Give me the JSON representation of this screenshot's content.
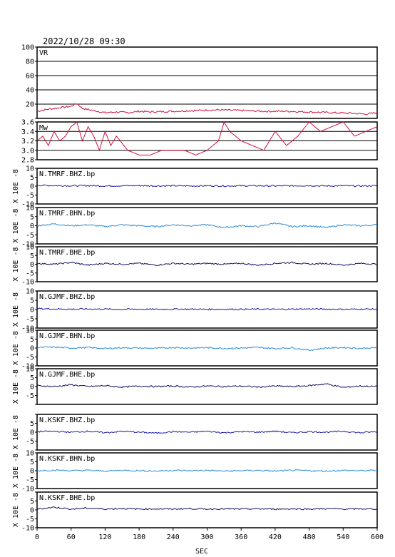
{
  "header": {
    "datetime": "2022/10/28 09:30"
  },
  "xaxis": {
    "label": "SEC",
    "min": 0,
    "max": 600,
    "ticks": [
      0,
      60,
      120,
      180,
      240,
      300,
      360,
      420,
      480,
      540,
      600
    ]
  },
  "colors": {
    "vr": "#d0103a",
    "mw": "#d0103a",
    "grid": "#000000",
    "bhz": "#1a1aa0",
    "bhn": "#2a8ad8",
    "bhe": "#101060"
  },
  "chart_data": [
    {
      "type": "line",
      "label": "VR",
      "ylim": [
        0,
        100
      ],
      "yticks": [
        0,
        20,
        40,
        60,
        80,
        100
      ],
      "ytick_labels": [
        "",
        "20",
        "40",
        "60",
        "80",
        "100"
      ],
      "grid": true,
      "x": [
        0,
        20,
        40,
        60,
        70,
        80,
        100,
        120,
        140,
        160,
        180,
        200,
        240,
        280,
        320,
        360,
        400,
        440,
        480,
        520,
        560,
        580,
        600
      ],
      "values": [
        10,
        13,
        15,
        17,
        21,
        14,
        11,
        8,
        9,
        8,
        10,
        9,
        10,
        11,
        12,
        11,
        10,
        10,
        9,
        8,
        7,
        6,
        8
      ]
    },
    {
      "type": "line",
      "label": "Mw",
      "ylim": [
        2.8,
        3.6
      ],
      "yticks": [
        2.8,
        3.0,
        3.2,
        3.4,
        3.6
      ],
      "ytick_labels": [
        "2.8",
        "3.0",
        "3.2",
        "3.4",
        "3.6"
      ],
      "grid": true,
      "x": [
        0,
        10,
        20,
        30,
        40,
        50,
        60,
        70,
        80,
        90,
        100,
        110,
        120,
        130,
        140,
        160,
        180,
        200,
        220,
        240,
        260,
        280,
        300,
        320,
        330,
        340,
        360,
        380,
        400,
        420,
        440,
        460,
        480,
        500,
        520,
        540,
        560,
        580,
        600
      ],
      "values": [
        3.2,
        3.3,
        3.1,
        3.4,
        3.2,
        3.3,
        3.5,
        3.6,
        3.2,
        3.5,
        3.3,
        3.0,
        3.4,
        3.1,
        3.3,
        3.0,
        2.9,
        2.9,
        3.0,
        3.0,
        3.0,
        2.9,
        3.0,
        3.2,
        3.6,
        3.4,
        3.2,
        3.1,
        3.0,
        3.4,
        3.1,
        3.3,
        3.6,
        3.4,
        3.5,
        3.6,
        3.3,
        3.4,
        3.5
      ]
    },
    {
      "type": "line",
      "label": "N.TMRF.BHZ.bp",
      "color_key": "bhz",
      "ylim": [
        -10,
        10
      ],
      "yticks": [
        -10,
        -5,
        0,
        5,
        10
      ],
      "ytick_labels": [
        "-10",
        "-5",
        "0",
        "5",
        "10"
      ],
      "ylabel": "X 10E -8",
      "x": [
        0,
        30,
        60,
        90,
        120,
        150,
        180,
        210,
        240,
        270,
        300,
        330,
        360,
        390,
        420,
        450,
        480,
        510,
        540,
        570,
        600
      ],
      "values": [
        0.5,
        0.3,
        0.2,
        0.3,
        0.1,
        0.2,
        0.3,
        0.1,
        0.2,
        0.1,
        0.2,
        0.1,
        0.2,
        0.2,
        0.1,
        0.2,
        0.3,
        0.1,
        0.2,
        0.1,
        0.2
      ]
    },
    {
      "type": "line",
      "label": "N.TMRF.BHN.bp",
      "color_key": "bhn",
      "ylim": [
        -10,
        10
      ],
      "yticks": [
        -10,
        -5,
        0,
        5,
        10
      ],
      "ytick_labels": [
        "-10",
        "-5",
        "0",
        "5",
        "10"
      ],
      "ylabel": "X 10E -8",
      "x": [
        0,
        30,
        60,
        90,
        120,
        150,
        180,
        210,
        240,
        270,
        300,
        330,
        360,
        390,
        420,
        450,
        480,
        510,
        540,
        570,
        600
      ],
      "values": [
        0.0,
        1.0,
        0.0,
        0.5,
        -0.5,
        0.5,
        0.0,
        -0.5,
        0.5,
        0.0,
        0.5,
        -1.0,
        0.0,
        -0.5,
        1.5,
        -0.5,
        0.0,
        -1.0,
        0.5,
        0.0,
        0.5
      ]
    },
    {
      "type": "line",
      "label": "N.TMRF.BHE.bp",
      "color_key": "bhe",
      "ylim": [
        -10,
        10
      ],
      "yticks": [
        -10,
        -5,
        0,
        5,
        10
      ],
      "ytick_labels": [
        "-10",
        "-5",
        "0",
        "5",
        "10"
      ],
      "ylabel": "X 10E -8",
      "x": [
        0,
        30,
        60,
        90,
        120,
        150,
        180,
        210,
        240,
        270,
        300,
        330,
        360,
        390,
        420,
        450,
        480,
        510,
        540,
        570,
        600
      ],
      "values": [
        0.5,
        0.0,
        1.0,
        -0.5,
        0.5,
        0.0,
        0.5,
        -0.5,
        0.5,
        0.0,
        0.5,
        0.0,
        0.5,
        -0.5,
        0.5,
        1.0,
        0.0,
        0.5,
        -0.5,
        0.5,
        0.0
      ]
    },
    {
      "type": "line",
      "label": "N.GJMF.BHZ.bp",
      "color_key": "bhz",
      "ylim": [
        -10,
        10
      ],
      "yticks": [
        -10,
        -5,
        0,
        5,
        10
      ],
      "ytick_labels": [
        "-10",
        "-5",
        "0",
        "5",
        "10"
      ],
      "ylabel": "X 10E -8",
      "x": [
        0,
        30,
        60,
        90,
        120,
        150,
        180,
        210,
        240,
        270,
        300,
        330,
        360,
        390,
        420,
        450,
        480,
        510,
        540,
        570,
        600
      ],
      "values": [
        0.5,
        0.3,
        0.2,
        0.3,
        0.2,
        0.1,
        0.2,
        0.1,
        0.2,
        0.2,
        0.1,
        0.2,
        0.1,
        0.2,
        0.1,
        0.2,
        0.3,
        0.2,
        0.1,
        0.2,
        0.2
      ]
    },
    {
      "type": "line",
      "label": "N.GJMF.BHN.bp",
      "color_key": "bhn",
      "ylim": [
        -10,
        10
      ],
      "yticks": [
        -10,
        -5,
        0,
        5,
        10
      ],
      "ytick_labels": [
        "-10",
        "-5",
        "0",
        "5",
        "10"
      ],
      "ylabel": "X 10E -8",
      "x": [
        0,
        30,
        60,
        90,
        120,
        150,
        180,
        210,
        240,
        270,
        300,
        330,
        360,
        390,
        420,
        450,
        480,
        510,
        540,
        570,
        600
      ],
      "values": [
        0.3,
        0.5,
        0.0,
        0.3,
        -0.3,
        0.2,
        0.0,
        -0.2,
        0.3,
        0.0,
        0.2,
        -0.2,
        0.0,
        0.3,
        -0.3,
        0.2,
        -1.2,
        0.0,
        0.3,
        -0.2,
        0.2
      ]
    },
    {
      "type": "line",
      "label": "N.GJMF.BHE.bp",
      "color_key": "bhe",
      "ylim": [
        -10,
        10
      ],
      "yticks": [
        -10,
        -5,
        0,
        5,
        10
      ],
      "ytick_labels": [
        "",
        "-5",
        "0",
        "5",
        "10"
      ],
      "ylabel": "X 10E -8",
      "x": [
        0,
        30,
        60,
        90,
        120,
        150,
        180,
        210,
        240,
        270,
        300,
        330,
        360,
        390,
        420,
        450,
        480,
        510,
        540,
        570,
        600
      ],
      "values": [
        0.5,
        0.0,
        1.0,
        0.0,
        0.5,
        -0.3,
        0.3,
        0.0,
        0.3,
        -0.3,
        0.3,
        0.0,
        0.3,
        -0.3,
        0.3,
        0.0,
        0.5,
        1.5,
        -0.5,
        0.3,
        0.0
      ]
    },
    {
      "type": "line",
      "label": "N.KSKF.BHZ.bp",
      "color_key": "bhz",
      "ylim": [
        -10,
        10
      ],
      "yticks": [
        -10,
        -5,
        0,
        5,
        10
      ],
      "ytick_labels": [
        "",
        "-5",
        "0",
        "5",
        ""
      ],
      "ylabel": "X 10E -8",
      "x": [
        0,
        30,
        60,
        90,
        120,
        150,
        180,
        210,
        240,
        270,
        300,
        330,
        360,
        390,
        420,
        450,
        480,
        510,
        540,
        570,
        600
      ],
      "values": [
        0.3,
        0.5,
        0.0,
        0.5,
        -0.3,
        0.5,
        0.0,
        -0.5,
        0.3,
        0.0,
        0.5,
        -0.3,
        0.3,
        0.0,
        0.5,
        -0.3,
        0.3,
        0.0,
        0.5,
        -0.3,
        0.3
      ]
    },
    {
      "type": "line",
      "label": "N.KSKF.BHN.bp",
      "color_key": "bhn",
      "ylim": [
        -10,
        10
      ],
      "yticks": [
        -10,
        -5,
        0,
        5,
        10
      ],
      "ytick_labels": [
        "-10",
        "-5",
        "0",
        "5",
        "10"
      ],
      "ylabel": "X 10E -8",
      "x": [
        0,
        30,
        60,
        90,
        120,
        150,
        180,
        210,
        240,
        270,
        300,
        330,
        360,
        390,
        420,
        450,
        480,
        510,
        540,
        570,
        600
      ],
      "values": [
        0.0,
        0.3,
        0.0,
        0.2,
        -0.2,
        0.2,
        0.0,
        -0.2,
        0.2,
        0.0,
        0.2,
        -0.2,
        0.0,
        0.2,
        -0.2,
        0.2,
        0.0,
        -0.2,
        0.2,
        0.0,
        0.2
      ]
    },
    {
      "type": "line",
      "label": "N.KSKF.BHE.bp",
      "color_key": "bhe",
      "ylim": [
        -10,
        10
      ],
      "yticks": [
        -10,
        -5,
        0,
        5,
        10
      ],
      "ytick_labels": [
        "-10",
        "-5",
        "0",
        "5",
        ""
      ],
      "ylabel": "X 10E -8",
      "x": [
        0,
        30,
        60,
        90,
        120,
        150,
        180,
        210,
        240,
        270,
        300,
        330,
        360,
        390,
        420,
        450,
        480,
        510,
        540,
        570,
        600
      ],
      "values": [
        0.5,
        1.5,
        0.5,
        1.0,
        0.5,
        0.8,
        0.5,
        0.6,
        0.5,
        0.7,
        0.5,
        0.6,
        0.5,
        0.6,
        0.5,
        0.6,
        0.5,
        0.7,
        0.5,
        0.6,
        0.5
      ]
    }
  ]
}
